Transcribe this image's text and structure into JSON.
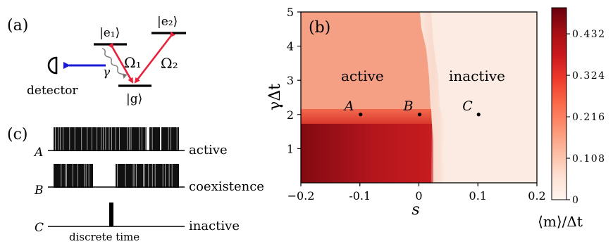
{
  "panels": {
    "a": {
      "tag": "(a)",
      "levels": {
        "e1": "|e₁⟩",
        "e2": "|e₂⟩",
        "g": "|g⟩"
      },
      "rabi1": "Ω₁",
      "rabi2": "Ω₂",
      "decay": "γ",
      "detector": "detector"
    },
    "b": {
      "tag": "(b)",
      "region_active": "active",
      "region_inactive": "inactive",
      "colorbar_label": "⟨m⟩/Δt",
      "colorbar_ticks": [
        "0.432",
        "0.324",
        "0.216",
        "0.108",
        "0"
      ],
      "colorbar_tick_values": [
        0.432,
        0.324,
        0.216,
        0.108,
        0
      ],
      "colorbar_max": 0.5
    },
    "c": {
      "tag": "(c)",
      "traces": [
        {
          "label": "A",
          "regime": "active"
        },
        {
          "label": "B",
          "regime": "coexistence"
        },
        {
          "label": "C",
          "regime": "inactive"
        }
      ],
      "xlabel": "discrete time"
    }
  },
  "chart_data": {
    "type": "heatmap",
    "xlabel": "s",
    "ylabel": "γΔt",
    "xlim": [
      -0.2,
      0.2
    ],
    "ylim": [
      0,
      5
    ],
    "xticks": [
      -0.2,
      -0.1,
      0,
      0.1,
      0.2
    ],
    "xtick_labels": [
      "−0.2",
      "-0.1",
      "0",
      "0.1",
      "0.2"
    ],
    "yticks": [
      1,
      2,
      3,
      4,
      5
    ],
    "ytick_labels": [
      "1",
      "2",
      "3",
      "4",
      "5"
    ],
    "colormap": "Reds",
    "points": [
      {
        "label": "A",
        "x": -0.1,
        "y": 2
      },
      {
        "label": "B",
        "x": 0.0,
        "y": 2
      },
      {
        "label": "C",
        "x": 0.1,
        "y": 2
      }
    ]
  }
}
